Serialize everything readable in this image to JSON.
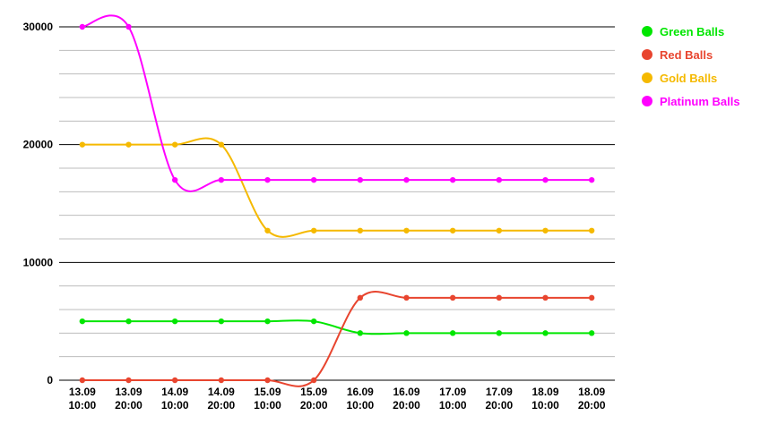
{
  "chart_data": {
    "type": "line",
    "categories": [
      [
        "13.09",
        "10:00"
      ],
      [
        "13.09",
        "20:00"
      ],
      [
        "14.09",
        "10:00"
      ],
      [
        "14.09",
        "20:00"
      ],
      [
        "15.09",
        "10:00"
      ],
      [
        "15.09",
        "20:00"
      ],
      [
        "16.09",
        "10:00"
      ],
      [
        "16.09",
        "20:00"
      ],
      [
        "17.09",
        "10:00"
      ],
      [
        "17.09",
        "20:00"
      ],
      [
        "18.09",
        "10:00"
      ],
      [
        "18.09",
        "20:00"
      ]
    ],
    "y_ticks": [
      "0",
      "10000",
      "20000",
      "30000"
    ],
    "ylim": [
      0,
      30000
    ],
    "minor_grid_step": 2000,
    "major_grid_step": 10000,
    "legend_position": "right",
    "series": [
      {
        "name": "Green Balls",
        "color": "#00e600",
        "values": [
          5000,
          5000,
          5000,
          5000,
          5000,
          5000,
          4000,
          4000,
          4000,
          4000,
          4000,
          4000
        ]
      },
      {
        "name": "Red Balls",
        "color": "#e8452f",
        "values": [
          0,
          0,
          0,
          0,
          0,
          0,
          7000,
          7000,
          7000,
          7000,
          7000,
          7000
        ]
      },
      {
        "name": "Gold Balls",
        "color": "#f5b900",
        "values": [
          20000,
          20000,
          20000,
          20000,
          12700,
          12700,
          12700,
          12700,
          12700,
          12700,
          12700,
          12700
        ]
      },
      {
        "name": "Platinum Balls",
        "color": "#ff00ff",
        "values": [
          30000,
          30000,
          17000,
          17000,
          17000,
          17000,
          17000,
          17000,
          17000,
          17000,
          17000,
          17000
        ]
      }
    ]
  }
}
